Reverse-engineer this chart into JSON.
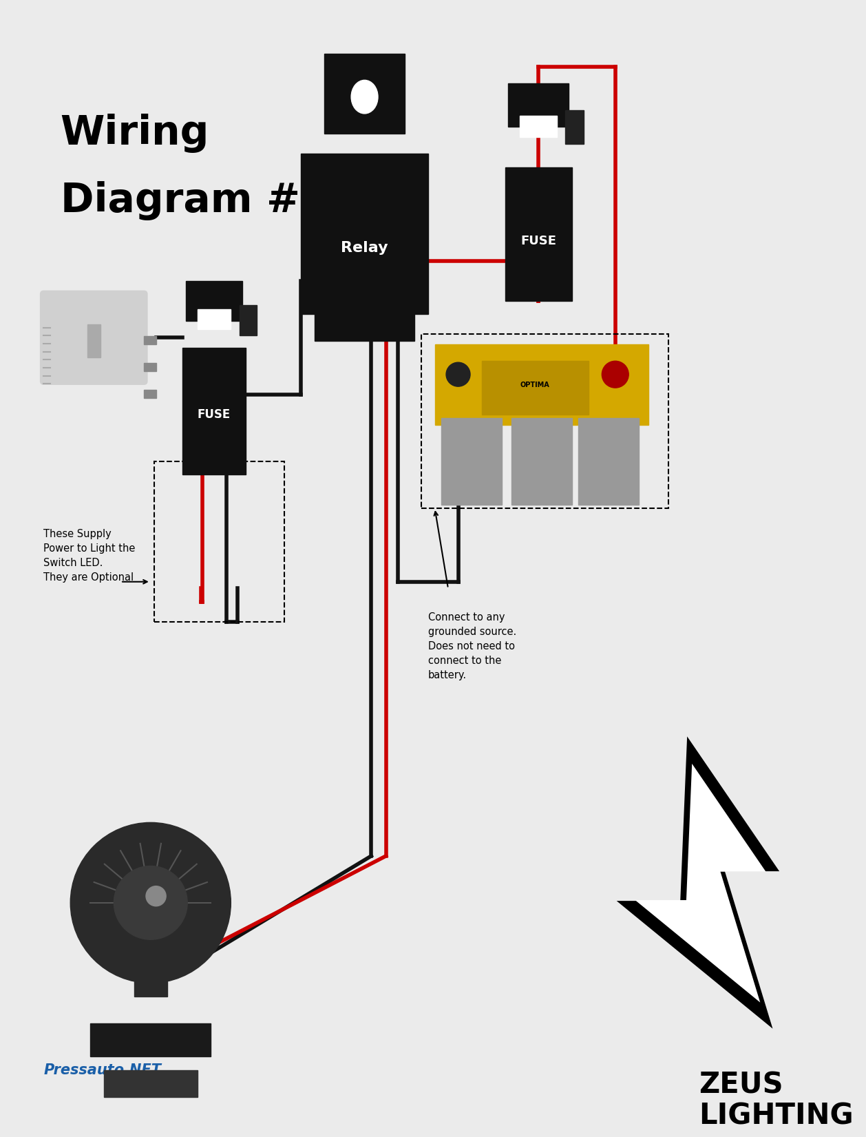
{
  "bg_color": "#ebebeb",
  "title_line1": "Wiring",
  "title_line2": "Diagram #1",
  "title_fontsize": 42,
  "relay_label": "Relay",
  "fuse_label": "FUSE",
  "fuse2_label": "FUSE",
  "annotation1_text": "These Supply\nPower to Light the\nSwitch LED.\nThey are Optional",
  "annotation2_text": "Connect to any\ngrounded source.\nDoes not need to\nconnect to the\nbattery.",
  "footer_text": "Pressauto.NET",
  "zeus_text": "ZEUS\nLIGHTING",
  "wire_black": "#111111",
  "wire_red": "#cc0000",
  "component_black": "#111111",
  "component_dark": "#222222",
  "battery_yellow": "#d4a800",
  "battery_gray": "#999999"
}
